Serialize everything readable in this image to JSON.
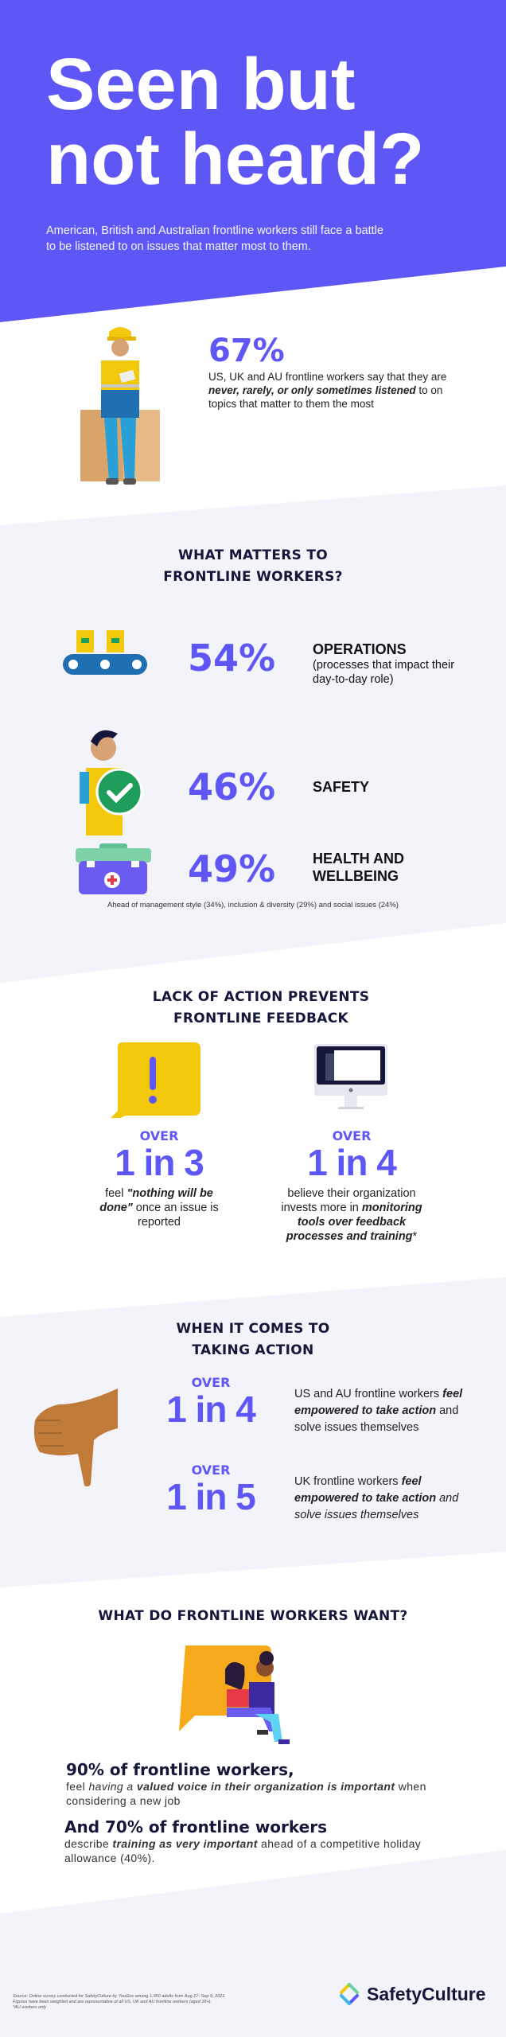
{
  "hero": {
    "title_line1": "Seen but",
    "title_line2": "not heard?",
    "subtitle": "American, British and Australian frontline workers still face a battle to be listened to on issues that matter most to them."
  },
  "stat67": {
    "value": "67%",
    "text_pre": "US, UK and AU frontline workers say that they are ",
    "text_em": "never, rarely, or only sometimes listened",
    "text_post": " to on topics that matter to them the most"
  },
  "matters": {
    "heading_line1": "WHAT MATTERS TO",
    "heading_line2": "FRONTLINE WORKERS?",
    "items": [
      {
        "value": "54%",
        "label": "OPERATIONS",
        "sub": "(processes that impact their day-to-day role)",
        "icon": "conveyor-belt-icon"
      },
      {
        "value": "46%",
        "label": "SAFETY",
        "sub": "",
        "icon": "safety-check-worker-icon"
      },
      {
        "value": "49%",
        "label": "HEALTH AND WELLBEING",
        "sub": "",
        "icon": "first-aid-kit-icon"
      }
    ],
    "footnote": "Ahead of management style (34%), inclusion & diversity (29%) and social issues (24%)"
  },
  "lack": {
    "heading_line1": "LACK OF ACTION PREVENTS",
    "heading_line2": "FRONTLINE FEEDBACK",
    "left": {
      "over": "OVER",
      "ratio": "1 in 3",
      "t1": "feel ",
      "em": "\"nothing will be done\"",
      "t2": " once an issue is reported"
    },
    "right": {
      "over": "OVER",
      "ratio": "1 in 4",
      "t1": "believe their organization invests more in ",
      "em": "monitoring tools over feedback processes and training",
      "t2": "*"
    }
  },
  "action": {
    "heading_line1": "WHEN IT COMES TO",
    "heading_line2": "TAKING ACTION",
    "items": [
      {
        "over": "OVER",
        "ratio": "1 in 4",
        "t1": "US and AU frontline workers ",
        "em": "feel empowered to take action",
        "t2": " and solve issues themselves"
      },
      {
        "over": "OVER",
        "ratio": "1 in 5",
        "t1": "UK frontline workers ",
        "em": "feel empowered to take action",
        "t2": " and solve issues themselves"
      }
    ]
  },
  "want": {
    "heading": "WHAT DO FRONTLINE WORKERS WANT?",
    "s1_head": "90% of frontline workers,",
    "s1_t1": "feel ",
    "s1_i": "having a ",
    "s1_b": "valued voice in their organization is important",
    "s1_t2": " when considering a new job",
    "s2_head": "And 70% of frontline workers",
    "s2_t1": "describe ",
    "s2_b": "training as very important",
    "s2_t2": " ahead of a competitive holiday allowance (40%)."
  },
  "footer": {
    "source": "Source: Online survey conducted for SafetyCulture by YouGov among 1,950 adults from Aug 27- Sep 9, 2021. Figures have been weighted and are representative of all US, UK and AU frontline workers (aged 18+).",
    "note": "*AU workers only",
    "brand": "SafetyCulture"
  },
  "colors": {
    "brand_purple": "#5f57f5",
    "dark_navy": "#14173a",
    "light_bg": "#f3f4f9",
    "yellow": "#f2c90a"
  }
}
